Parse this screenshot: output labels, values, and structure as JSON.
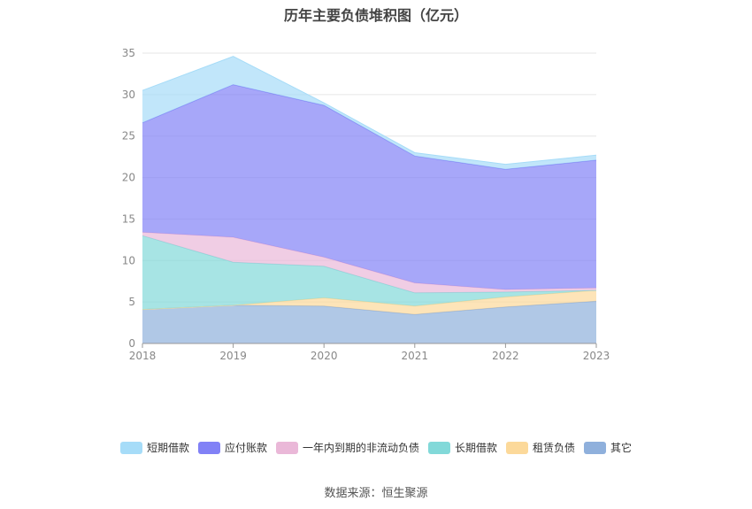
{
  "chart_data": {
    "type": "area",
    "stacked": true,
    "title": "历年主要负债堆积图（亿元）",
    "x": [
      "2018",
      "2019",
      "2020",
      "2021",
      "2022",
      "2023"
    ],
    "ylim": [
      0,
      35
    ],
    "yticks": [
      0,
      5,
      10,
      15,
      20,
      25,
      30,
      35
    ],
    "grid": true,
    "legend_position": "bottom",
    "series": [
      {
        "name": "其它",
        "color": "#8fb0dc",
        "values": [
          4.1,
          4.6,
          4.5,
          3.5,
          4.4,
          5.1
        ]
      },
      {
        "name": "租赁负债",
        "color": "#fcd99a",
        "values": [
          0.0,
          0.0,
          1.0,
          1.0,
          1.2,
          1.3
        ]
      },
      {
        "name": "长期借款",
        "color": "#82d9d9",
        "values": [
          8.9,
          5.2,
          3.8,
          1.6,
          0.6,
          0.0
        ]
      },
      {
        "name": "一年内到期的非流动负债",
        "color": "#eab8d8",
        "values": [
          0.4,
          3.0,
          1.1,
          1.2,
          0.3,
          0.3
        ]
      },
      {
        "name": "应付账款",
        "color": "#8181f6",
        "values": [
          13.2,
          18.4,
          18.3,
          15.3,
          14.5,
          15.4
        ]
      },
      {
        "name": "短期借款",
        "color": "#a6dcf8",
        "values": [
          3.9,
          3.4,
          0.3,
          0.4,
          0.6,
          0.6
        ]
      }
    ],
    "legend_order": [
      "短期借款",
      "应付账款",
      "一年内到期的非流动负债",
      "长期借款",
      "租赁负债",
      "其它"
    ]
  },
  "source": "数据来源：恒生聚源"
}
